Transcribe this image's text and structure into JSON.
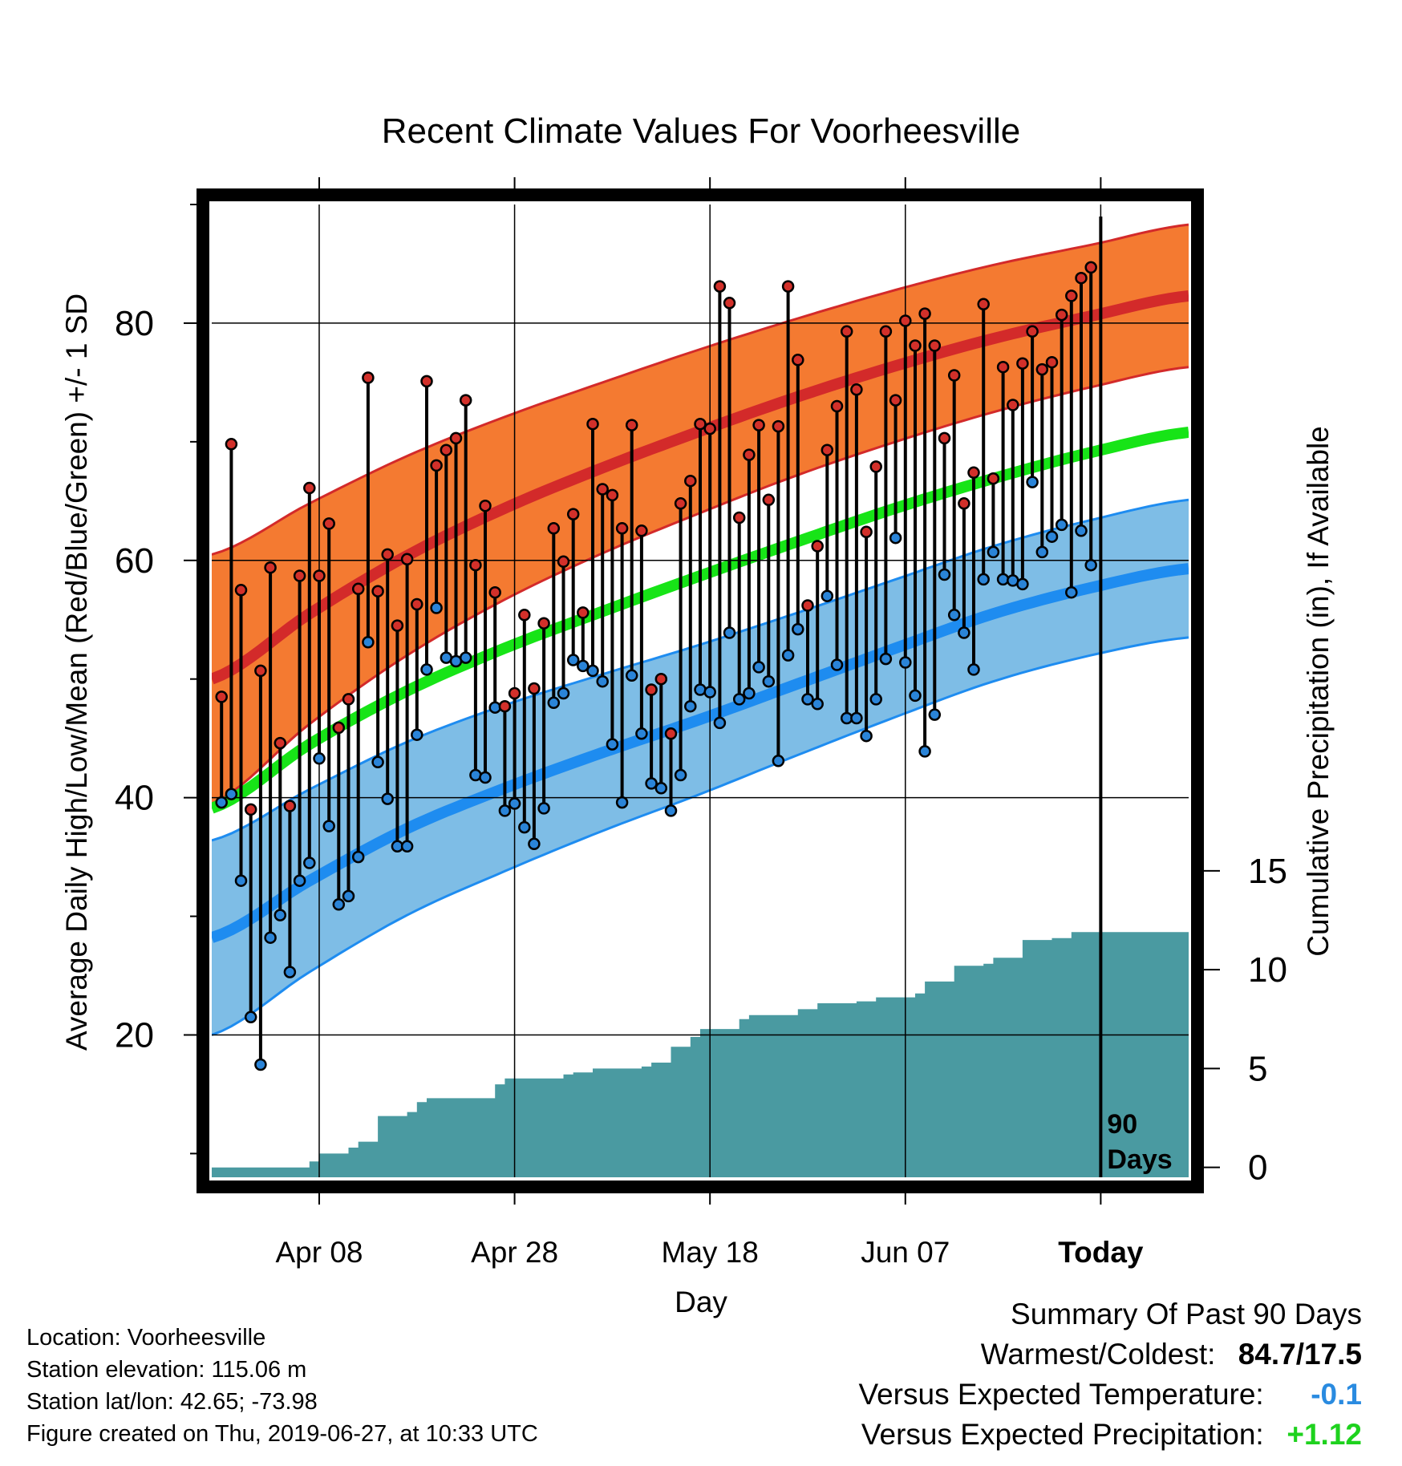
{
  "chart_data": {
    "type": "line",
    "title": "Recent Climate Values For Voorheesville",
    "xlabel": "Day",
    "ylabel": "Average Daily High/Low/Mean (Red/Blue/Green) +/- 1 SD",
    "y2label": "Cumulative Precipitation (in), If Available",
    "ylim": [
      8,
      90
    ],
    "y_ticks": [
      20,
      40,
      60,
      80
    ],
    "y2lim": [
      -0.5,
      48.7
    ],
    "y2_ticks": [
      0,
      5,
      10,
      15
    ],
    "x_ticks": [
      {
        "date": "2019-04-08",
        "label": "Apr 08"
      },
      {
        "date": "2019-04-28",
        "label": "Apr 28"
      },
      {
        "date": "2019-05-18",
        "label": "May 18"
      },
      {
        "date": "2019-06-07",
        "label": "Jun 07"
      },
      {
        "date": "2019-06-27",
        "label": "Today"
      }
    ],
    "x_start": "2019-03-28",
    "x_end": "2019-07-06",
    "today": "2019-06-27",
    "today_label_1": "90",
    "today_label_2": "Days",
    "grid": true,
    "colors": {
      "high_band": "#f47a31",
      "high_mean": "#d32a2a",
      "low_band": "#7ebde6",
      "low_mean": "#1e8cf0",
      "mean_line": "#17e417",
      "precip": "#4a9aa1",
      "high_dot": "#d2302a",
      "low_dot": "#2a84d8"
    },
    "normals": {
      "x": [
        "2019-03-28",
        "2019-04-07",
        "2019-04-17",
        "2019-04-27",
        "2019-05-07",
        "2019-05-17",
        "2019-05-27",
        "2019-06-06",
        "2019-06-16",
        "2019-06-26",
        "2019-07-06"
      ],
      "high_mean": [
        50.0,
        55.5,
        60.4,
        64.4,
        67.8,
        70.9,
        73.8,
        76.4,
        78.7,
        80.6,
        82.3
      ],
      "high_sd": [
        10.5,
        9.3,
        8.4,
        7.7,
        7.2,
        6.9,
        6.6,
        6.4,
        6.2,
        6.0,
        6.0
      ],
      "low_mean": [
        28.2,
        33.0,
        37.4,
        40.8,
        43.8,
        46.6,
        49.6,
        52.6,
        55.5,
        57.7,
        59.3
      ],
      "low_sd": [
        8.2,
        7.7,
        7.3,
        7.0,
        6.6,
        6.3,
        6.0,
        5.8,
        5.7,
        5.7,
        5.8
      ],
      "mean": [
        39.1,
        44.5,
        49.0,
        52.6,
        55.7,
        58.7,
        61.6,
        64.4,
        66.9,
        69.1,
        70.8
      ]
    },
    "series": [
      {
        "name": "High",
        "values": [
          48.5,
          69.8,
          57.5,
          39,
          50.7,
          59.4,
          44.6,
          39.3,
          58.7,
          66.1,
          58.7,
          63.1,
          45.9,
          48.3,
          57.6,
          75.4,
          57.4,
          60.5,
          54.5,
          60.1,
          56.3,
          75.1,
          68,
          69.3,
          70.3,
          73.5,
          59.6,
          64.6,
          57.3,
          47.7,
          48.8,
          55.4,
          49.2,
          54.7,
          62.7,
          59.9,
          63.9,
          55.6,
          71.5,
          66,
          65.5,
          62.7,
          71.4,
          62.5,
          49.1,
          50,
          45.4,
          64.8,
          66.7,
          71.5,
          71.1,
          83.1,
          81.7,
          63.6,
          68.9,
          71.4,
          65.1,
          71.3,
          83.1,
          76.9,
          56.2,
          61.2,
          69.3,
          73,
          79.3,
          74.4,
          62.4,
          67.9,
          79.3,
          73.5,
          80.2,
          78.1,
          80.8,
          78.1,
          70.3,
          75.6,
          64.8,
          67.4,
          81.6,
          66.9,
          76.3,
          73.1,
          76.6,
          79.3,
          76.1,
          76.7,
          80.7,
          82.3,
          83.8,
          84.7
        ]
      },
      {
        "name": "Low",
        "values": [
          39.6,
          40.3,
          33,
          21.5,
          17.5,
          28.2,
          30.1,
          25.3,
          33,
          34.5,
          43.3,
          37.6,
          31,
          31.7,
          35,
          53.1,
          43,
          39.9,
          35.9,
          35.9,
          45.3,
          50.8,
          56,
          51.8,
          51.5,
          51.8,
          41.9,
          41.7,
          47.6,
          38.9,
          39.5,
          37.5,
          36.1,
          39.1,
          48,
          48.8,
          51.6,
          51.1,
          50.7,
          49.8,
          44.5,
          39.6,
          50.3,
          45.4,
          41.2,
          40.8,
          38.9,
          41.9,
          47.7,
          49.1,
          48.9,
          46.3,
          53.9,
          48.3,
          48.8,
          51,
          49.8,
          43.1,
          52,
          54.2,
          48.3,
          47.9,
          57,
          51.2,
          46.7,
          46.7,
          45.2,
          48.3,
          51.7,
          61.9,
          51.4,
          48.6,
          43.9,
          47,
          58.8,
          55.4,
          53.9,
          50.8,
          58.4,
          60.7,
          58.4,
          58.3,
          58,
          66.6,
          60.7,
          62,
          63,
          57.3,
          62.5,
          59.6
        ]
      }
    ],
    "precip_cumulative": {
      "x": [
        "2019-03-28",
        "2019-04-05",
        "2019-04-07",
        "2019-04-08",
        "2019-04-11",
        "2019-04-12",
        "2019-04-14",
        "2019-04-17",
        "2019-04-18",
        "2019-04-19",
        "2019-04-21",
        "2019-04-22",
        "2019-04-26",
        "2019-04-27",
        "2019-04-29",
        "2019-05-03",
        "2019-05-04",
        "2019-05-06",
        "2019-05-11",
        "2019-05-12",
        "2019-05-14",
        "2019-05-16",
        "2019-05-17",
        "2019-05-19",
        "2019-05-21",
        "2019-05-22",
        "2019-05-26",
        "2019-05-27",
        "2019-05-29",
        "2019-06-02",
        "2019-06-04",
        "2019-06-06",
        "2019-06-08",
        "2019-06-09",
        "2019-06-10",
        "2019-06-12",
        "2019-06-15",
        "2019-06-16",
        "2019-06-19",
        "2019-06-22",
        "2019-06-24",
        "2019-07-06"
      ],
      "values": [
        0,
        0,
        0.3,
        0.7,
        1.0,
        1.3,
        2.6,
        2.8,
        3.3,
        3.5,
        3.5,
        3.5,
        4.2,
        4.5,
        4.5,
        4.7,
        4.8,
        5.0,
        5.1,
        5.3,
        6.1,
        6.6,
        7.0,
        7.0,
        7.5,
        7.7,
        7.7,
        8.0,
        8.3,
        8.4,
        8.6,
        8.6,
        8.8,
        9.4,
        9.4,
        10.2,
        10.3,
        10.6,
        11.5,
        11.6,
        11.9,
        11.9
      ]
    }
  },
  "footer": {
    "location": "Location: Voorheesville",
    "elevation": "Station elevation: 115.06 m",
    "latlon": "Station lat/lon: 42.65; -73.98",
    "created": "Figure created on Thu, 2019-06-27, at 10:33 UTC"
  },
  "summary": {
    "title": "Summary Of Past 90 Days",
    "warmest_label": "Warmest/Coldest:",
    "warmest_value": "84.7/17.5",
    "temp_label": "Versus Expected Temperature:",
    "temp_value": "-0.1",
    "temp_color": "#2a8be0",
    "precip_label": "Versus Expected Precipitation:",
    "precip_value": "+1.12",
    "precip_color": "#1ed21e"
  }
}
